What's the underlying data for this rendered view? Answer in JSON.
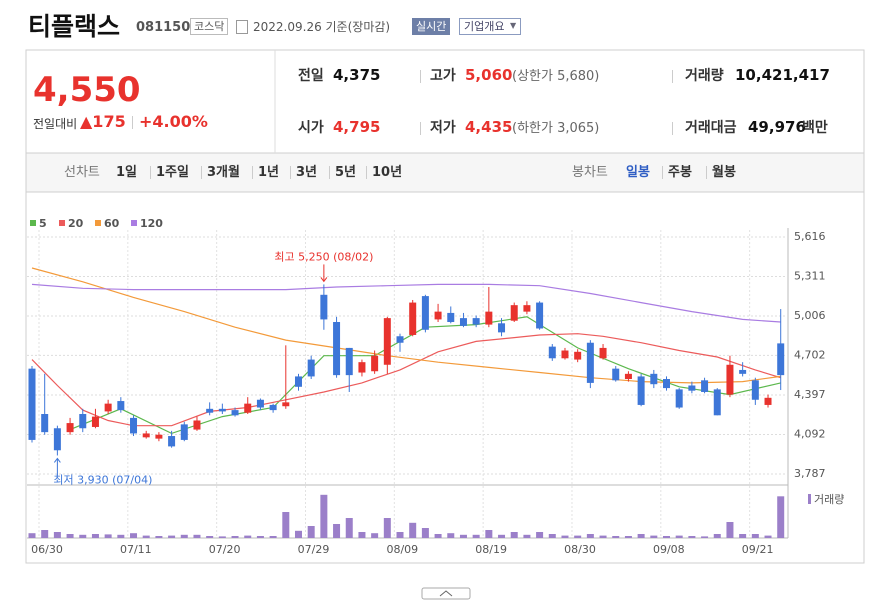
{
  "header": {
    "title": "티플랙스",
    "code": "081150",
    "market": "코스닥",
    "date": "2022.09.26 기준(장마감)",
    "realtime": "실시간",
    "company_info": "기업개요"
  },
  "quote": {
    "price": "4,550",
    "change_label": "전일대비",
    "change": "▲175",
    "change_pct": "+4.00%",
    "prev_close": {
      "label": "전일",
      "value": "4,375"
    },
    "high": {
      "label": "고가",
      "value": "5,060",
      "limit": "(상한가 5,680)"
    },
    "volume": {
      "label": "거래량",
      "value": "10,421,417"
    },
    "open": {
      "label": "시가",
      "value": "4,795"
    },
    "low": {
      "label": "저가",
      "value": "4,435",
      "limit": "(하한가 3,065)"
    },
    "amount": {
      "label": "거래대금",
      "value": "49,976",
      "unit": "백만"
    }
  },
  "tabs": {
    "line_chart": "선차트",
    "periods": [
      "1일",
      "1주일",
      "3개월",
      "1년",
      "3년",
      "5년",
      "10년"
    ],
    "candle_chart": "봉차트",
    "candle_periods": [
      "일봉",
      "주봉",
      "월봉"
    ]
  },
  "chart_data": {
    "type": "candlestick",
    "categories": [
      "06/30",
      null,
      null,
      null,
      null,
      null,
      null,
      "07/11",
      null,
      null,
      null,
      null,
      null,
      null,
      "07/20",
      null,
      null,
      null,
      null,
      null,
      null,
      "07/29",
      null,
      null,
      null,
      null,
      null,
      null,
      "08/09",
      null,
      null,
      null,
      null,
      null,
      null,
      "08/19",
      null,
      null,
      null,
      null,
      null,
      null,
      "08/30",
      null,
      null,
      null,
      null,
      null,
      null,
      "09/08",
      null,
      null,
      null,
      null,
      null,
      null,
      "09/21",
      null,
      null,
      null
    ],
    "open": [
      4600,
      4250,
      4140,
      4110,
      4250,
      4150,
      4270,
      4350,
      4220,
      4070,
      4060,
      4080,
      4170,
      4130,
      4290,
      4290,
      4280,
      4260,
      4360,
      4320,
      4310,
      4540,
      4670,
      5170,
      4960,
      4760,
      4570,
      4580,
      4630,
      4850,
      4860,
      5160,
      4980,
      5030,
      4990,
      4990,
      4940,
      4950,
      4970,
      5040,
      5110,
      4770,
      4680,
      4670,
      4800,
      4680,
      4600,
      4520,
      4540,
      4560,
      4520,
      4440,
      4470,
      4510,
      4440,
      4400,
      4590,
      4510,
      4320,
      4795
    ],
    "high": [
      4620,
      4560,
      4160,
      4220,
      4290,
      4290,
      4360,
      4380,
      4240,
      4120,
      4110,
      4120,
      4190,
      4230,
      4340,
      4330,
      4300,
      4380,
      4370,
      4330,
      4780,
      4560,
      4700,
      5250,
      5000,
      4760,
      4670,
      4740,
      5000,
      4870,
      5130,
      5170,
      5100,
      5080,
      5030,
      5010,
      5230,
      4990,
      5110,
      5120,
      5120,
      4790,
      4760,
      4750,
      4820,
      4790,
      4620,
      4580,
      4560,
      4590,
      4540,
      4450,
      4500,
      4530,
      4450,
      4700,
      4650,
      4530,
      4400,
      5060
    ],
    "low": [
      4030,
      4090,
      3930,
      4090,
      4110,
      4140,
      4250,
      4260,
      4080,
      4060,
      4040,
      3990,
      4040,
      4120,
      4240,
      4250,
      4230,
      4250,
      4280,
      4260,
      4290,
      4430,
      4520,
      4900,
      4530,
      4420,
      4540,
      4560,
      4560,
      4730,
      4850,
      4880,
      4960,
      4950,
      4920,
      4920,
      4920,
      4850,
      4960,
      5020,
      4900,
      4660,
      4670,
      4650,
      4450,
      4670,
      4500,
      4500,
      4310,
      4450,
      4430,
      4290,
      4410,
      4410,
      4240,
      4380,
      4540,
      4320,
      4300,
      4435
    ],
    "close": [
      4050,
      4110,
      3970,
      4180,
      4140,
      4230,
      4330,
      4280,
      4100,
      4100,
      4090,
      4000,
      4050,
      4200,
      4260,
      4270,
      4240,
      4330,
      4300,
      4280,
      4340,
      4460,
      4540,
      4980,
      4550,
      4550,
      4650,
      4700,
      4990,
      4800,
      5110,
      4900,
      5040,
      4960,
      4930,
      4940,
      5040,
      4880,
      5090,
      5090,
      4910,
      4680,
      4740,
      4730,
      4490,
      4760,
      4510,
      4560,
      4320,
      4480,
      4450,
      4300,
      4430,
      4420,
      4240,
      4630,
      4560,
      4360,
      4375,
      4550
    ],
    "up_color": "#e8322d",
    "down_color": "#3d76d8",
    "moving_averages": [
      {
        "name": "5",
        "color": "#5cb84d",
        "x": [
          3,
          7,
          11,
          15,
          19,
          23,
          27,
          31,
          35,
          39,
          43,
          47,
          51,
          55,
          59
        ],
        "values": [
          4130,
          4290,
          4100,
          4230,
          4300,
          4700,
          4700,
          4920,
          4940,
          5000,
          4760,
          4600,
          4460,
          4400,
          4490
        ]
      },
      {
        "name": "20",
        "color": "#ec5b5b",
        "x": [
          0,
          2,
          4,
          6,
          8,
          11,
          14,
          17,
          20,
          23,
          26,
          29,
          32,
          35,
          38,
          40,
          43,
          45,
          48,
          51,
          54,
          57,
          59
        ],
        "values": [
          4670,
          4470,
          4280,
          4200,
          4160,
          4160,
          4270,
          4300,
          4360,
          4420,
          4490,
          4590,
          4730,
          4810,
          4840,
          4860,
          4870,
          4850,
          4800,
          4740,
          4690,
          4590,
          4530
        ]
      },
      {
        "name": "60",
        "color": "#f39a3a",
        "x": [
          0,
          4,
          8,
          12,
          16,
          20,
          24,
          28,
          32,
          36,
          40,
          44,
          48,
          52,
          56,
          59
        ],
        "values": [
          5377,
          5270,
          5150,
          5040,
          4920,
          4820,
          4760,
          4700,
          4650,
          4610,
          4570,
          4530,
          4500,
          4490,
          4500,
          4540
        ]
      },
      {
        "name": "120",
        "color": "#a97ce2",
        "x": [
          0,
          4,
          8,
          12,
          16,
          20,
          24,
          28,
          32,
          36,
          40,
          44,
          48,
          52,
          56,
          59
        ],
        "values": [
          5250,
          5220,
          5210,
          5210,
          5210,
          5210,
          5230,
          5240,
          5250,
          5250,
          5240,
          5180,
          5110,
          5040,
          4980,
          4960
        ]
      }
    ],
    "ylim": [
      3787,
      5616
    ],
    "yticks": [
      {
        "value": 5616,
        "label": "5,616"
      },
      {
        "value": 5311,
        "label": "5,311"
      },
      {
        "value": 5006,
        "label": "5,006"
      },
      {
        "value": 4702,
        "label": "4,702"
      },
      {
        "value": 4397,
        "label": "4,397"
      },
      {
        "value": 4092,
        "label": "4,092"
      },
      {
        "value": 3787,
        "label": "3,787"
      }
    ],
    "grid": true,
    "volume": {
      "name": "거래량",
      "color": "#9b7fc9",
      "ylim": [
        0,
        11000000
      ],
      "values": [
        1200000,
        2000000,
        1500000,
        1000000,
        800000,
        1000000,
        900000,
        800000,
        1200000,
        600000,
        500000,
        600000,
        800000,
        800000,
        500000,
        400000,
        500000,
        600000,
        500000,
        500000,
        6500000,
        1800000,
        3000000,
        10800000,
        3500000,
        5000000,
        1500000,
        1200000,
        5000000,
        1500000,
        3800000,
        2500000,
        1000000,
        1200000,
        800000,
        800000,
        2000000,
        800000,
        1500000,
        800000,
        1500000,
        1000000,
        600000,
        600000,
        1000000,
        600000,
        500000,
        500000,
        1000000,
        600000,
        500000,
        600000,
        500000,
        400000,
        1000000,
        4000000,
        1000000,
        1000000,
        600000,
        10421417
      ]
    },
    "annotations": [
      {
        "text": "최고 5,250 (08/02)",
        "x": 23,
        "y": 5250,
        "color": "#e8322d"
      },
      {
        "text": "최저 3,930 (07/04)",
        "x": 2,
        "y": 3930,
        "color": "#3d76d8"
      }
    ]
  }
}
